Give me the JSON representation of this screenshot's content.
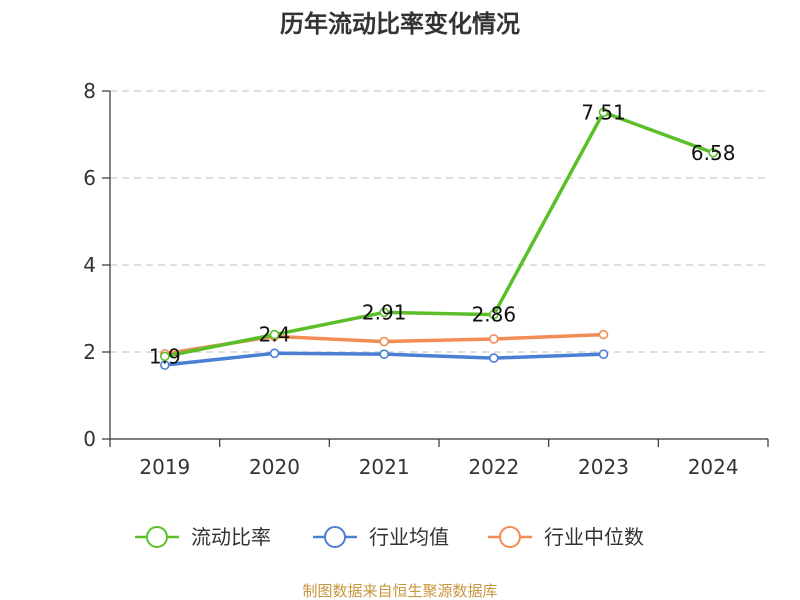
{
  "chart_data": {
    "type": "line",
    "title": "历年流动比率变化情况",
    "categories": [
      "2019",
      "2020",
      "2021",
      "2022",
      "2023",
      "2024"
    ],
    "ylim": [
      0,
      8
    ],
    "yticks": [
      0,
      2,
      4,
      6,
      8
    ],
    "grid": true,
    "legend_position": "bottom",
    "series": [
      {
        "name": "流动比率",
        "color": "#5cbf2a",
        "values": [
          1.9,
          2.4,
          2.91,
          2.86,
          7.51,
          6.58
        ],
        "labels": [
          "1.9",
          "2.4",
          "2.91",
          "2.86",
          "7.51",
          "6.58"
        ]
      },
      {
        "name": "行业均值",
        "color": "#4a7fd4",
        "values": [
          1.7,
          1.97,
          1.95,
          1.86,
          1.95,
          null
        ]
      },
      {
        "name": "行业中位数",
        "color": "#f28c55",
        "values": [
          1.96,
          2.36,
          2.24,
          2.3,
          2.4,
          null
        ]
      }
    ]
  },
  "source": "制图数据来自恒生聚源数据库"
}
